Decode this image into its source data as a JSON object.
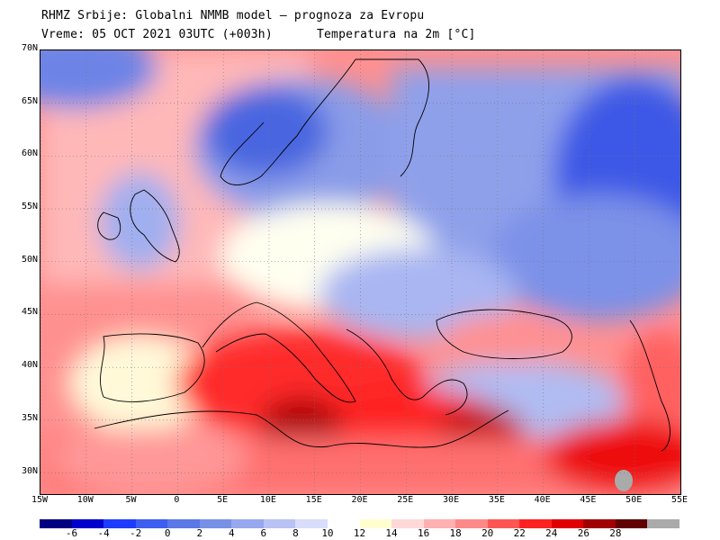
{
  "header": {
    "title": "RHMZ Srbije: Globalni NMMB model — prognoza za Evropu",
    "valid_time": "Vreme: 05 OCT 2021 03UTC (+003h)",
    "field": "Temperatura na 2m [°C]"
  },
  "map": {
    "lat_labels": [
      "70N",
      "65N",
      "60N",
      "55N",
      "50N",
      "45N",
      "40N",
      "35N",
      "30N"
    ],
    "lon_labels": [
      "15W",
      "10W",
      "5W",
      "0",
      "5E",
      "10E",
      "15E",
      "20E",
      "25E",
      "30E",
      "35E",
      "40E",
      "45E",
      "50E",
      "55E"
    ],
    "lat_values": [
      70,
      65,
      60,
      55,
      50,
      45,
      40,
      35,
      30
    ],
    "lon_values": [
      -15,
      -10,
      -5,
      0,
      5,
      10,
      15,
      20,
      25,
      30,
      35,
      40,
      45,
      50,
      55
    ],
    "extent": {
      "lon_min": -15,
      "lon_max": 55,
      "lat_min": 28,
      "lat_max": 70
    }
  },
  "colorbar": {
    "labels": [
      "-6",
      "-4",
      "-2",
      "0",
      "2",
      "4",
      "6",
      "8",
      "10",
      "12",
      "14",
      "16",
      "18",
      "20",
      "22",
      "24",
      "26",
      "28"
    ],
    "colors": [
      "#000080",
      "#0000cd",
      "#1e3cff",
      "#3d5ef0",
      "#5a78e6",
      "#7890e6",
      "#97a8ee",
      "#b8c2f5",
      "#d9ddfb",
      "#ffffff",
      "#ffffd0",
      "#ffd8d8",
      "#ffb0b0",
      "#ff8888",
      "#ff5555",
      "#ff2222",
      "#e00000",
      "#a00000",
      "#600000",
      "#aaaaaa"
    ]
  }
}
